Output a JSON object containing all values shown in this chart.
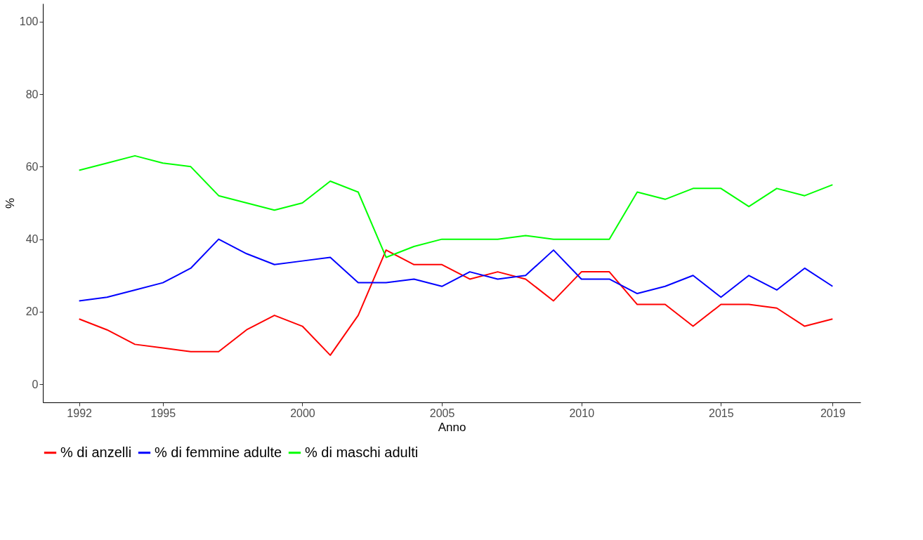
{
  "chart_data": {
    "type": "line",
    "xlabel": "Anno",
    "ylabel": "%",
    "x": [
      1992,
      1993,
      1994,
      1995,
      1996,
      1997,
      1998,
      1999,
      2000,
      2001,
      2002,
      2003,
      2004,
      2005,
      2006,
      2007,
      2008,
      2009,
      2010,
      2011,
      2012,
      2013,
      2014,
      2015,
      2016,
      2017,
      2018,
      2019
    ],
    "series": [
      {
        "name": "% di anzelli",
        "color": "#ff0000",
        "values": [
          18,
          15,
          11,
          10,
          9,
          9,
          15,
          19,
          16,
          8,
          19,
          37,
          33,
          33,
          29,
          31,
          29,
          23,
          31,
          31,
          22,
          22,
          16,
          22,
          22,
          21,
          16,
          18
        ]
      },
      {
        "name": "% di femmine adulte",
        "color": "#0000ff",
        "values": [
          23,
          24,
          26,
          28,
          32,
          40,
          36,
          33,
          34,
          35,
          28,
          28,
          29,
          27,
          31,
          29,
          30,
          37,
          29,
          29,
          25,
          27,
          30,
          24,
          30,
          26,
          32,
          27
        ]
      },
      {
        "name": "% di maschi adulti",
        "color": "#00ff00",
        "values": [
          59,
          61,
          63,
          61,
          60,
          52,
          50,
          48,
          50,
          56,
          53,
          35,
          38,
          40,
          40,
          40,
          41,
          40,
          40,
          40,
          53,
          51,
          54,
          54,
          49,
          54,
          52,
          55
        ]
      }
    ],
    "xlim": [
      1990.7,
      2020
    ],
    "xticks": [
      1992,
      1995,
      2000,
      2005,
      2010,
      2015,
      2019
    ],
    "ylim": [
      -5,
      105
    ],
    "yticks": [
      0,
      20,
      40,
      60,
      80,
      100
    ],
    "grid": false,
    "legend": "bottom",
    "line_style": "solid",
    "marker": "none"
  }
}
